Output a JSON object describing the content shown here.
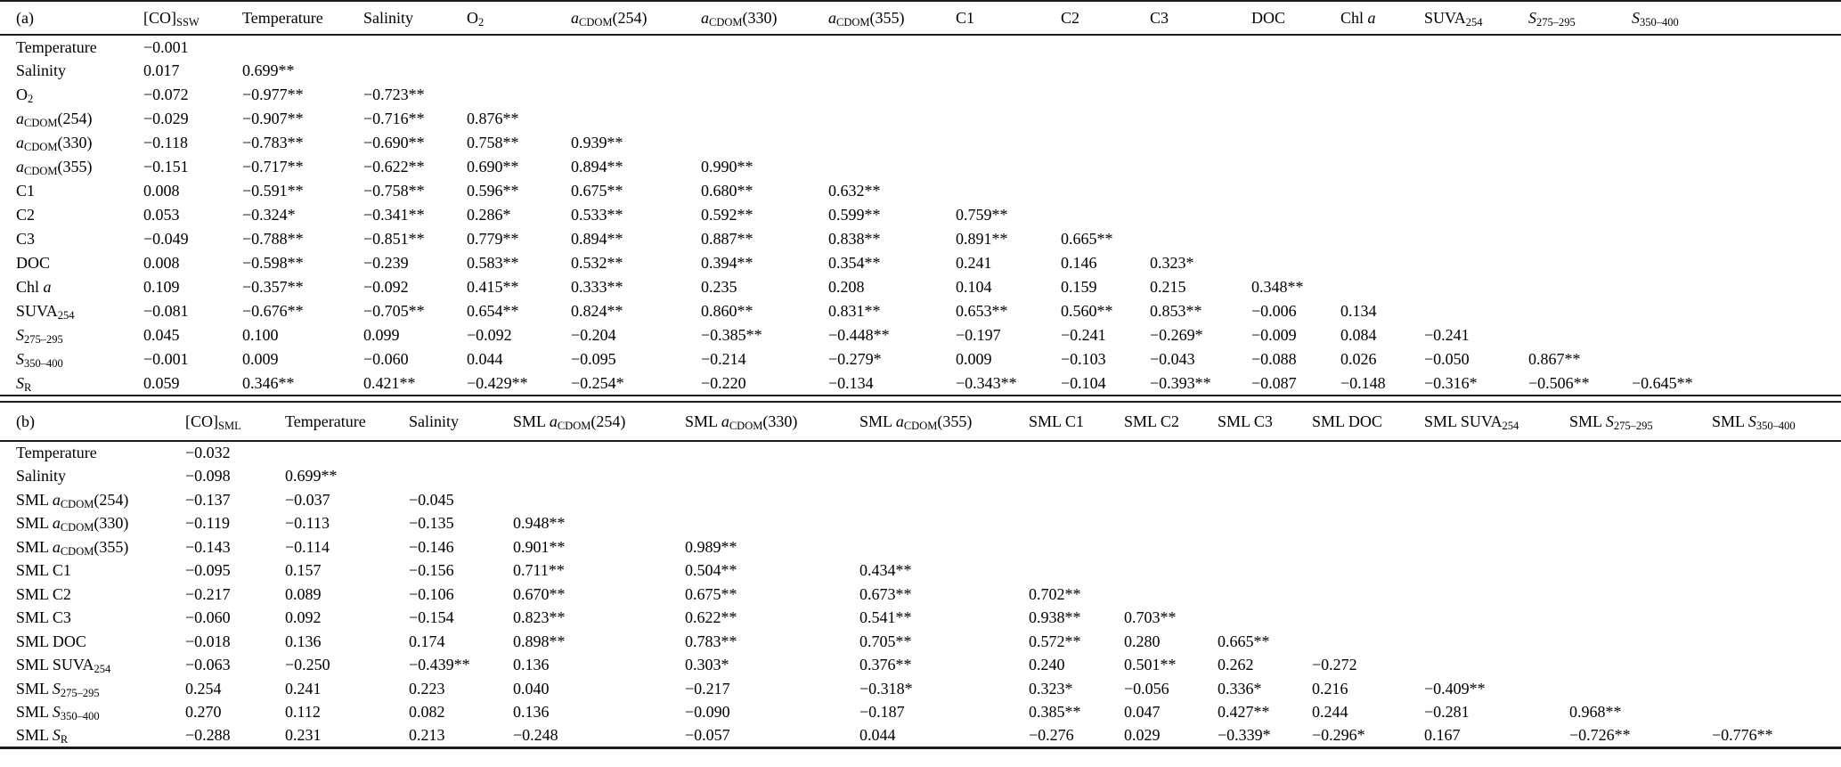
{
  "colors": {
    "background": "#ffffff",
    "text": "#000000",
    "rule": "#1c1c1c"
  },
  "panels": [
    {
      "label": "(a)",
      "columns": [
        "[CO]_{SSW}",
        "Temperature",
        "Salinity",
        "O_{2}",
        "*a*_{CDOM}(254)",
        "*a*_{CDOM}(330)",
        "*a*_{CDOM}(355)",
        "C1",
        "C2",
        "C3",
        "DOC",
        "Chl *a*",
        "SUVA_{254}",
        "*S*_{275–295}",
        "*S*_{350–400}"
      ],
      "rows": [
        {
          "label": "Temperature",
          "values": [
            "−0.001"
          ]
        },
        {
          "label": "Salinity",
          "values": [
            "0.017",
            "0.699**"
          ]
        },
        {
          "label": "O_{2}",
          "values": [
            "−0.072",
            "−0.977**",
            "−0.723**"
          ]
        },
        {
          "label": "*a*_{CDOM}(254)",
          "values": [
            "−0.029",
            "−0.907**",
            "−0.716**",
            "0.876**"
          ]
        },
        {
          "label": "*a*_{CDOM}(330)",
          "values": [
            "−0.118",
            "−0.783**",
            "−0.690**",
            "0.758**",
            "0.939**"
          ]
        },
        {
          "label": "*a*_{CDOM}(355)",
          "values": [
            "−0.151",
            "−0.717**",
            "−0.622**",
            "0.690**",
            "0.894**",
            "0.990**"
          ]
        },
        {
          "label": "C1",
          "values": [
            "0.008",
            "−0.591**",
            "−0.758**",
            "0.596**",
            "0.675**",
            "0.680**",
            "0.632**"
          ]
        },
        {
          "label": "C2",
          "values": [
            "0.053",
            "−0.324*",
            "−0.341**",
            "0.286*",
            "0.533**",
            "0.592**",
            "0.599**",
            "0.759**"
          ]
        },
        {
          "label": "C3",
          "values": [
            "−0.049",
            "−0.788**",
            "−0.851**",
            "0.779**",
            "0.894**",
            "0.887**",
            "0.838**",
            "0.891**",
            "0.665**"
          ]
        },
        {
          "label": "DOC",
          "values": [
            "0.008",
            "−0.598**",
            "−0.239",
            "0.583**",
            "0.532**",
            "0.394**",
            "0.354**",
            "0.241",
            "0.146",
            "0.323*"
          ]
        },
        {
          "label": "Chl *a*",
          "values": [
            "0.109",
            "−0.357**",
            "−0.092",
            "0.415**",
            "0.333**",
            "0.235",
            "0.208",
            "0.104",
            "0.159",
            "0.215",
            "0.348**"
          ]
        },
        {
          "label": "SUVA_{254}",
          "values": [
            "−0.081",
            "−0.676**",
            "−0.705**",
            "0.654**",
            "0.824**",
            "0.860**",
            "0.831**",
            "0.653**",
            "0.560**",
            "0.853**",
            "−0.006",
            "0.134"
          ]
        },
        {
          "label": "*S*_{275–295}",
          "values": [
            "0.045",
            "0.100",
            "0.099",
            "−0.092",
            "−0.204",
            "−0.385**",
            "−0.448**",
            "−0.197",
            "−0.241",
            "−0.269*",
            "−0.009",
            "0.084",
            "−0.241"
          ]
        },
        {
          "label": "*S*_{350–400}",
          "values": [
            "−0.001",
            "0.009",
            "−0.060",
            "0.044",
            "−0.095",
            "−0.214",
            "−0.279*",
            "0.009",
            "−0.103",
            "−0.043",
            "−0.088",
            "0.026",
            "−0.050",
            "0.867**"
          ]
        },
        {
          "label": "*S*_{R}",
          "values": [
            "0.059",
            "0.346**",
            "0.421**",
            "−0.429**",
            "−0.254*",
            "−0.220",
            "−0.134",
            "−0.343**",
            "−0.104",
            "−0.393**",
            "−0.087",
            "−0.148",
            "−0.316*",
            "−0.506**",
            "−0.645**"
          ]
        }
      ]
    },
    {
      "label": "(b)",
      "columns": [
        "[CO]_{SML}",
        "Temperature",
        "Salinity",
        "SML *a*_{CDOM}(254)",
        "SML *a*_{CDOM}(330)",
        "SML *a*_{CDOM}(355)",
        "SML C1",
        "SML C2",
        "SML C3",
        "SML DOC",
        "SML SUVA_{254}",
        "SML *S*_{275–295}",
        "SML *S*_{350–400}"
      ],
      "rows": [
        {
          "label": "Temperature",
          "values": [
            "−0.032"
          ]
        },
        {
          "label": "Salinity",
          "values": [
            "−0.098",
            "0.699**"
          ]
        },
        {
          "label": "SML *a*_{CDOM}(254)",
          "values": [
            "−0.137",
            "−0.037",
            "−0.045"
          ]
        },
        {
          "label": "SML *a*_{CDOM}(330)",
          "values": [
            "−0.119",
            "−0.113",
            "−0.135",
            "0.948**"
          ]
        },
        {
          "label": "SML *a*_{CDOM}(355)",
          "values": [
            "−0.143",
            "−0.114",
            "−0.146",
            "0.901**",
            "0.989**"
          ]
        },
        {
          "label": "SML C1",
          "values": [
            "−0.095",
            "0.157",
            "−0.156",
            "0.711**",
            "0.504**",
            "0.434**"
          ]
        },
        {
          "label": "SML C2",
          "values": [
            "−0.217",
            "0.089",
            "−0.106",
            "0.670**",
            "0.675**",
            "0.673**",
            "0.702**"
          ]
        },
        {
          "label": "SML C3",
          "values": [
            "−0.060",
            "0.092",
            "−0.154",
            "0.823**",
            "0.622**",
            "0.541**",
            "0.938**",
            "0.703**"
          ]
        },
        {
          "label": "SML DOC",
          "values": [
            "−0.018",
            "0.136",
            "0.174",
            "0.898**",
            "0.783**",
            "0.705**",
            "0.572**",
            "0.280",
            "0.665**"
          ]
        },
        {
          "label": "SML SUVA_{254}",
          "values": [
            "−0.063",
            "−0.250",
            "−0.439**",
            "0.136",
            "0.303*",
            "0.376**",
            "0.240",
            "0.501**",
            "0.262",
            "−0.272"
          ]
        },
        {
          "label": "SML *S*_{275–295}",
          "values": [
            "0.254",
            "0.241",
            "0.223",
            "0.040",
            "−0.217",
            "−0.318*",
            "0.323*",
            "−0.056",
            "0.336*",
            "0.216",
            "−0.409**"
          ]
        },
        {
          "label": "SML *S*_{350–400}",
          "values": [
            "0.270",
            "0.112",
            "0.082",
            "0.136",
            "−0.090",
            "−0.187",
            "0.385**",
            "0.047",
            "0.427**",
            "0.244",
            "−0.281",
            "0.968**"
          ]
        },
        {
          "label": "SML *S*_{R}",
          "values": [
            "−0.288",
            "0.231",
            "0.213",
            "−0.248",
            "−0.057",
            "0.044",
            "−0.276",
            "0.029",
            "−0.339*",
            "−0.296*",
            "0.167",
            "−0.726**",
            "−0.776**"
          ]
        }
      ]
    }
  ]
}
